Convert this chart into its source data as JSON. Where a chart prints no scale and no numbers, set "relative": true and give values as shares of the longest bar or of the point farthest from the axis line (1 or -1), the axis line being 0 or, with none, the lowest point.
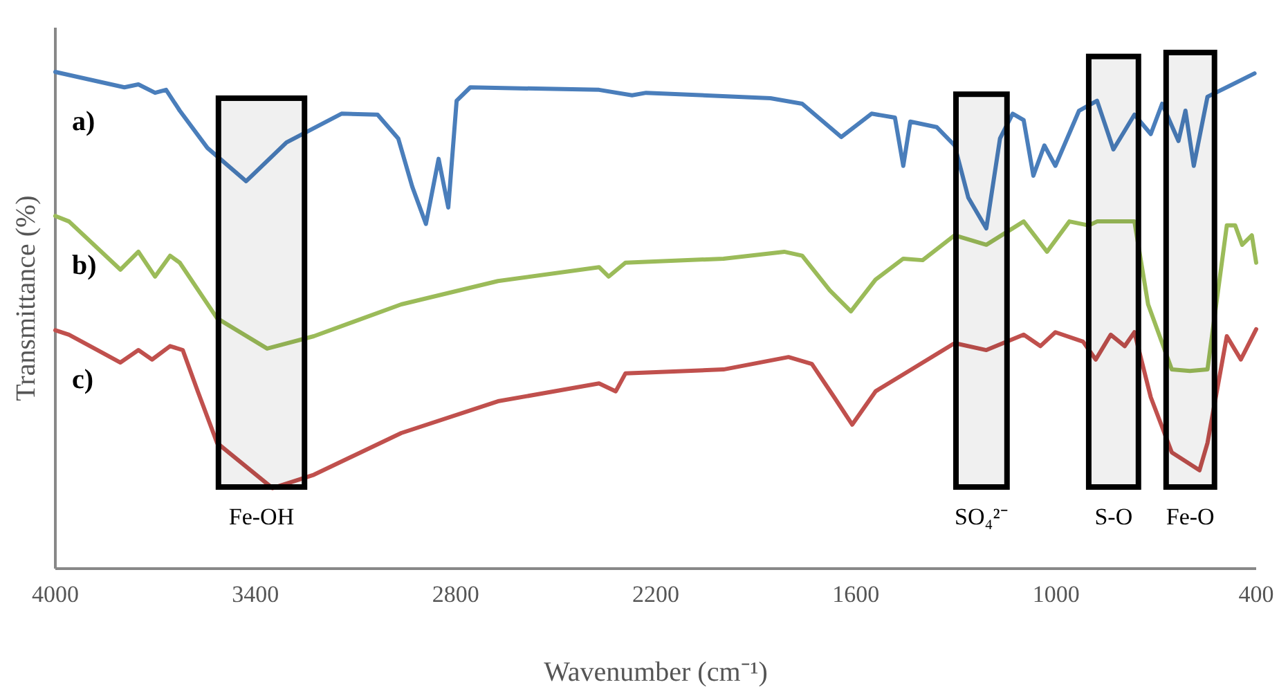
{
  "chart_data": {
    "type": "line",
    "relative": true,
    "xlabel": "Wavenumber (cm⁻¹)",
    "ylabel": "Transmittance (%)",
    "xlim": [
      4000,
      400
    ],
    "xticks": [
      4000,
      3400,
      2800,
      2200,
      1600,
      1000,
      400
    ],
    "grid": false,
    "marker": "none",
    "line_style": "solid",
    "series": [
      {
        "name": "a)",
        "color": "#4a7ebb",
        "x": [
          4000,
          3793,
          3751,
          3701,
          3668,
          3627,
          3544,
          3428,
          3307,
          3142,
          3034,
          2972,
          2930,
          2889,
          2851,
          2822,
          2797,
          2756,
          2370,
          2271,
          2229,
          1856,
          1761,
          1644,
          1553,
          1483,
          1458,
          1437,
          1358,
          1304,
          1263,
          1209,
          1168,
          1130,
          1097,
          1068,
          1035,
          1002,
          931,
          877,
          828,
          765,
          716,
          682,
          633,
          612,
          587,
          546,
          405
        ],
        "values": [
          1.0,
          0.969,
          0.975,
          0.958,
          0.964,
          0.922,
          0.847,
          0.78,
          0.858,
          0.916,
          0.914,
          0.866,
          0.769,
          0.694,
          0.825,
          0.727,
          0.942,
          0.969,
          0.964,
          0.953,
          0.958,
          0.947,
          0.936,
          0.869,
          0.916,
          0.908,
          0.811,
          0.9,
          0.889,
          0.852,
          0.747,
          0.685,
          0.866,
          0.916,
          0.903,
          0.791,
          0.852,
          0.811,
          0.922,
          0.942,
          0.844,
          0.914,
          0.875,
          0.936,
          0.861,
          0.922,
          0.811,
          0.95,
          0.997
        ]
      },
      {
        "name": "b)",
        "color": "#9bbb59",
        "x": [
          4000,
          3959,
          3805,
          3751,
          3701,
          3656,
          3627,
          3515,
          3365,
          3225,
          2963,
          2673,
          2370,
          2341,
          2291,
          1997,
          1815,
          1761,
          1678,
          1615,
          1541,
          1458,
          1400,
          1304,
          1209,
          1097,
          1027,
          960,
          902,
          877,
          765,
          724,
          653,
          599,
          546,
          488,
          463,
          442,
          413,
          400
        ],
        "values": [
          0.71,
          0.699,
          0.602,
          0.638,
          0.588,
          0.63,
          0.616,
          0.504,
          0.443,
          0.468,
          0.532,
          0.579,
          0.607,
          0.588,
          0.616,
          0.624,
          0.638,
          0.63,
          0.56,
          0.518,
          0.582,
          0.624,
          0.621,
          0.671,
          0.652,
          0.699,
          0.638,
          0.699,
          0.691,
          0.699,
          0.699,
          0.532,
          0.401,
          0.398,
          0.401,
          0.691,
          0.691,
          0.652,
          0.671,
          0.616
        ]
      },
      {
        "name": "c)",
        "color": "#c0504d",
        "x": [
          4000,
          3959,
          3805,
          3751,
          3710,
          3656,
          3618,
          3573,
          3515,
          3349,
          3225,
          2963,
          2673,
          2370,
          2320,
          2291,
          1997,
          1802,
          1732,
          1665,
          1611,
          1541,
          1441,
          1304,
          1209,
          1097,
          1047,
          1002,
          919,
          881,
          836,
          794,
          765,
          716,
          653,
          570,
          546,
          488,
          446,
          400
        ],
        "values": [
          0.48,
          0.471,
          0.415,
          0.44,
          0.421,
          0.448,
          0.44,
          0.357,
          0.253,
          0.162,
          0.189,
          0.273,
          0.337,
          0.373,
          0.357,
          0.393,
          0.401,
          0.426,
          0.412,
          0.345,
          0.29,
          0.357,
          0.398,
          0.454,
          0.44,
          0.471,
          0.448,
          0.476,
          0.457,
          0.421,
          0.471,
          0.448,
          0.476,
          0.345,
          0.234,
          0.198,
          0.253,
          0.468,
          0.421,
          0.482
        ]
      }
    ],
    "bands": [
      {
        "axis": "x",
        "from": 3511,
        "to": 3253,
        "label": "Fe-OH"
      },
      {
        "axis": "x",
        "from": 1300,
        "to": 1147,
        "label": "SO₄²⁻"
      },
      {
        "axis": "x",
        "from": 902,
        "to": 753,
        "label": "S-O"
      },
      {
        "axis": "x",
        "from": 670,
        "to": 525,
        "label": "Fe-O"
      }
    ]
  }
}
